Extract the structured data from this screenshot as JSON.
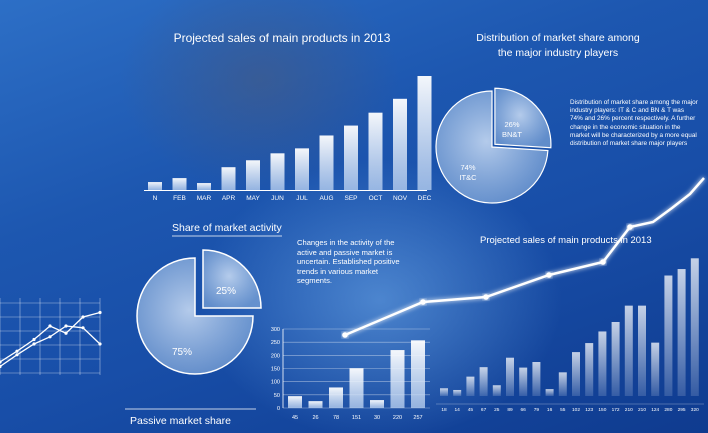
{
  "chart_data": [
    {
      "type": "bar",
      "title": "Projected sales of main products in 2013",
      "categories": [
        "N",
        "FEB",
        "MAR",
        "APR",
        "MAY",
        "JUN",
        "JUL",
        "AUG",
        "SEP",
        "OCT",
        "NOV",
        "DEC"
      ],
      "values": [
        8,
        12,
        7,
        23,
        30,
        37,
        42,
        55,
        65,
        78,
        92,
        115
      ],
      "ylim": [
        0,
        120
      ],
      "xlabel": "",
      "ylabel": ""
    },
    {
      "type": "pie",
      "title": "Distribution of market share among the major industry players",
      "slices": [
        {
          "label": "BN&T",
          "value": 26,
          "text": "26%"
        },
        {
          "label": "IT&C",
          "value": 74,
          "text": "74%"
        }
      ]
    },
    {
      "type": "pie",
      "title": "Share of market activity",
      "bottom_label": "Passive market share",
      "slices": [
        {
          "label": "",
          "value": 25,
          "text": "25%"
        },
        {
          "label": "",
          "value": 75,
          "text": "75%"
        }
      ]
    },
    {
      "type": "bar",
      "title": "",
      "categories": [
        "45",
        "26",
        "78",
        "151",
        "30",
        "220",
        "257"
      ],
      "values": [
        45,
        26,
        78,
        151,
        30,
        220,
        257
      ],
      "ylim": [
        0,
        300
      ],
      "yticks": [
        "0",
        "50",
        "100",
        "150",
        "200",
        "250",
        "300"
      ]
    },
    {
      "type": "bar",
      "title": "Projected sales of main products in 2013",
      "categories": [
        "18",
        "14",
        "45",
        "67",
        "25",
        "89",
        "66",
        "79",
        "16",
        "55",
        "102",
        "123",
        "150",
        "172",
        "210",
        "210",
        "124",
        "280",
        "295",
        "320"
      ],
      "values": [
        18,
        14,
        45,
        67,
        25,
        89,
        66,
        79,
        16,
        55,
        102,
        123,
        150,
        172,
        210,
        210,
        124,
        280,
        295,
        320
      ],
      "line": [
        35,
        48,
        60,
        72,
        82,
        100,
        108,
        128,
        160,
        190
      ],
      "ylim": [
        0,
        330
      ]
    },
    {
      "type": "line",
      "title": "",
      "series": [
        {
          "values": [
            20,
            32,
            45,
            60,
            52,
            70,
            75
          ]
        },
        {
          "values": [
            15,
            28,
            40,
            48,
            60,
            58,
            40
          ]
        }
      ],
      "ylim": [
        0,
        100
      ]
    }
  ],
  "text": {
    "p1": "Distribution of market share among the major industry players: IT & C and BN & T was 74% and 26% percent respectively. A further change in the economic situation in the market will be characterized by a more equal distribution of market share major players",
    "p2": "Changes in the activity of the active and passive market is uncertain. Established positive trends in various market segments."
  },
  "colors": {
    "bar": "#dfe9f8",
    "accent": "#ffffff"
  }
}
